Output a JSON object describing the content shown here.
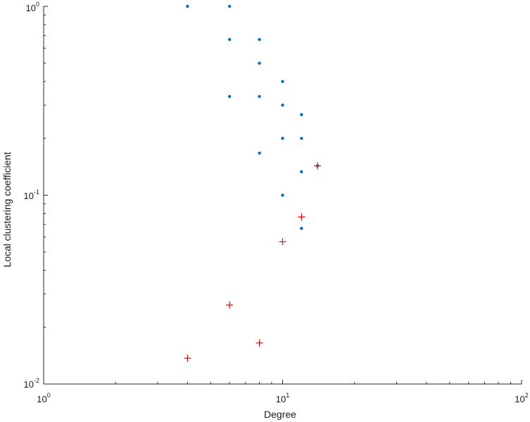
{
  "chart_data": {
    "type": "scatter",
    "title": "",
    "xlabel": "Degree",
    "ylabel": "Local clustering coefficient",
    "xscale": "log",
    "yscale": "log",
    "xlim": [
      1,
      100
    ],
    "ylim": [
      0.01,
      1
    ],
    "grid": false,
    "x_ticks": [
      {
        "base": "10",
        "exp": "0"
      },
      {
        "base": "10",
        "exp": "1"
      },
      {
        "base": "10",
        "exp": "2"
      }
    ],
    "y_ticks": [
      {
        "base": "10",
        "exp": "-2"
      },
      {
        "base": "10",
        "exp": "-1"
      },
      {
        "base": "10",
        "exp": "0"
      }
    ],
    "series": [
      {
        "marker": "dot",
        "color": "#0072bd",
        "points": [
          [
            4,
            1.0
          ],
          [
            6,
            1.0
          ],
          [
            6,
            0.667
          ],
          [
            8,
            0.667
          ],
          [
            8,
            0.5
          ],
          [
            10,
            0.4
          ],
          [
            6,
            0.333
          ],
          [
            8,
            0.333
          ],
          [
            10,
            0.3
          ],
          [
            12,
            0.267
          ],
          [
            10,
            0.2
          ],
          [
            12,
            0.2
          ],
          [
            8,
            0.167
          ],
          [
            14,
            0.143
          ],
          [
            12,
            0.133
          ],
          [
            10,
            0.1
          ],
          [
            12,
            0.0667
          ]
        ]
      },
      {
        "marker": "plus",
        "color": "#ff0000",
        "points": [
          [
            14,
            0.143
          ],
          [
            12,
            0.0767
          ],
          [
            10,
            0.0567
          ],
          [
            6,
            0.0262
          ],
          [
            8,
            0.0165
          ],
          [
            4,
            0.0137
          ]
        ]
      }
    ]
  }
}
